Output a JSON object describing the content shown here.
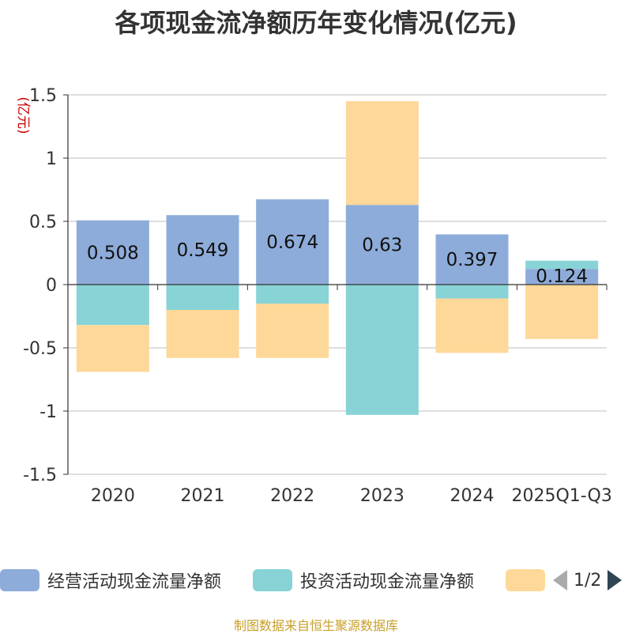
{
  "chart_data": {
    "type": "bar",
    "stacked": true,
    "title": "各项现金流净额历年变化情况(亿元)",
    "ylabel": "(亿元)",
    "ylim": [
      -1.5,
      1.5
    ],
    "yticks": [
      1.5,
      1,
      0.5,
      0,
      -0.5,
      -1,
      -1.5
    ],
    "ytick_labels": [
      "1.5",
      "1",
      "0.5",
      "0",
      "-0.5",
      "-1",
      "-1.5"
    ],
    "grid": true,
    "legend_position": "bottom",
    "categories": [
      "2020",
      "2021",
      "2022",
      "2023",
      "2024",
      "2025Q1-Q3"
    ],
    "series": [
      {
        "name": "经营活动现金流量净额",
        "color": "#8eacd9",
        "values": [
          0.508,
          0.549,
          0.674,
          0.63,
          0.397,
          0.124
        ],
        "labels": [
          "0.508",
          "0.549",
          "0.674",
          "0.63",
          "0.397",
          "0.124"
        ]
      },
      {
        "name": "投资活动现金流量净额",
        "color": "#88d3d6",
        "values": [
          -0.32,
          -0.2,
          -0.15,
          -1.03,
          -0.11,
          0.065
        ]
      },
      {
        "name": "",
        "color": "#fed899",
        "values": [
          -0.37,
          -0.38,
          -0.43,
          0.82,
          -0.43,
          -0.43
        ]
      }
    ]
  },
  "legend": {
    "pager": "1/2"
  },
  "footer": {
    "source": "制图数据来自恒生聚源数据库"
  }
}
